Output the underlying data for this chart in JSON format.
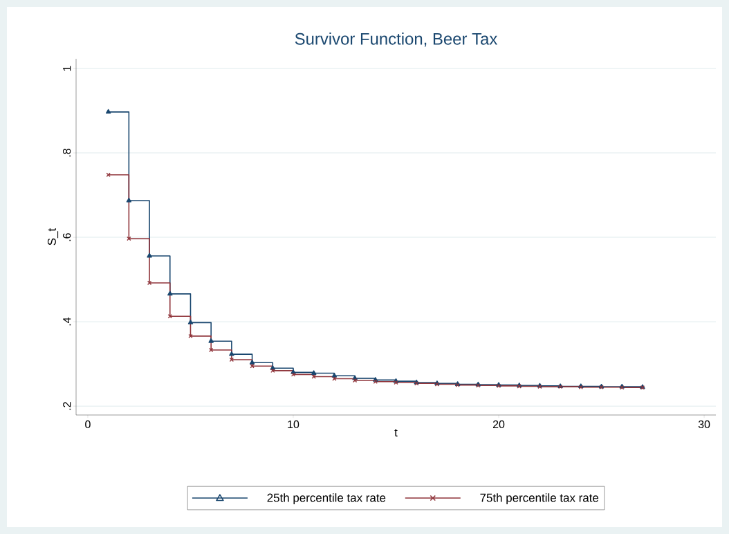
{
  "chart_data": {
    "type": "step",
    "title": "Survivor Function, Beer Tax",
    "xlabel": "t",
    "ylabel": "S_t",
    "x": [
      1,
      2,
      3,
      4,
      5,
      6,
      7,
      8,
      9,
      10,
      11,
      12,
      13,
      14,
      15,
      16,
      17,
      18,
      19,
      20,
      21,
      22,
      23,
      24,
      25,
      26,
      27
    ],
    "series": [
      {
        "name": "25th percentile tax rate",
        "color": "#1a476f",
        "marker": "triangle",
        "values": [
          0.897,
          0.687,
          0.556,
          0.466,
          0.398,
          0.354,
          0.323,
          0.303,
          0.29,
          0.28,
          0.278,
          0.272,
          0.266,
          0.262,
          0.259,
          0.256,
          0.254,
          0.252,
          0.251,
          0.25,
          0.249,
          0.248,
          0.247,
          0.247,
          0.246,
          0.246,
          0.245
        ]
      },
      {
        "name": "75th percentile tax rate",
        "color": "#90353b",
        "marker": "cross",
        "values": [
          0.748,
          0.597,
          0.492,
          0.413,
          0.366,
          0.333,
          0.31,
          0.295,
          0.284,
          0.275,
          0.27,
          0.265,
          0.261,
          0.258,
          0.256,
          0.254,
          0.252,
          0.25,
          0.249,
          0.248,
          0.247,
          0.246,
          0.246,
          0.245,
          0.245,
          0.244,
          0.244
        ]
      }
    ],
    "xlim": [
      -0.57,
      30.57
    ],
    "ylim": [
      0.179,
      1.023
    ],
    "xticks": [
      0,
      10,
      20,
      30
    ],
    "yticks": [
      {
        "value": 0.2,
        "label": ".2"
      },
      {
        "value": 0.4,
        "label": ".4"
      },
      {
        "value": 0.6,
        "label": ".6"
      },
      {
        "value": 0.8,
        "label": ".8"
      },
      1
    ],
    "grid": "y",
    "legend": "bottom"
  }
}
